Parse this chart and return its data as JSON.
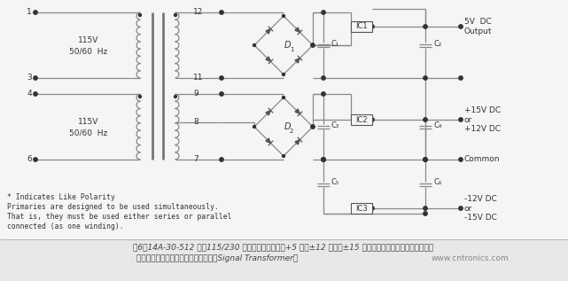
{
  "bg_color": "#f5f5f5",
  "line_color": "#888888",
  "dot_color": "#333333",
  "text_color": "#333333",
  "caption_cn": "图6：14A-30-512 采用115/230 伏输入电压，适用于+5 伏或±12 伏直流±15 伏直流电源，具体取决于用户如何",
  "caption_cn2": "连接初级和次级侧绕组。（图片来源：Signal Transformer）",
  "caption_url": "www.cntronics.com",
  "note1": "* Indicates Like Polarity",
  "note2": "Primaries are designed to be used simultaneously.",
  "note3": "That is, they must be used either series or parallel",
  "note4": "connected (as one winding).",
  "label_115v_1": "115V",
  "label_hz_1": "50/60  Hz",
  "label_115v_2": "115V",
  "label_hz_2": "50/60  Hz"
}
